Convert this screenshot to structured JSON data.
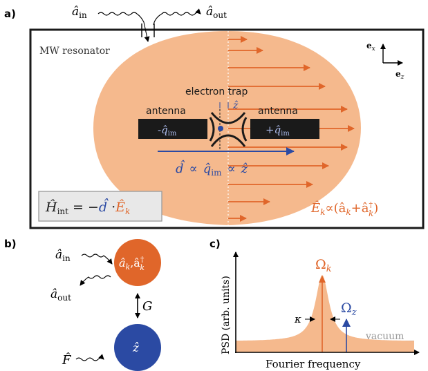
{
  "panel_a": {
    "label": "a)",
    "a_in": "â",
    "a_in_sub": "in",
    "a_out": "â",
    "a_out_sub": "out",
    "resonator_label": "MW resonator",
    "axis_x": "e",
    "axis_x_sub": "x",
    "axis_z": "e",
    "axis_z_sub": "z",
    "electron_trap": "electron trap",
    "z_hat_small": "ẑ",
    "antenna_left": "antenna",
    "antenna_right": "antenna",
    "q_left": "-q̂",
    "q_left_sub": "im",
    "q_right": "+q̂",
    "q_right_sub": "im",
    "dipole_d": "d̂",
    "dipole_mid": "∝",
    "dipole_q": "q̂",
    "dipole_q_sub": "im",
    "dipole_mid2": "∝",
    "dipole_z": "ẑ",
    "hamiltonian_H": "Ĥ",
    "hamiltonian_H_sub": "int",
    "hamiltonian_eq": " = −",
    "hamiltonian_d": "d̂",
    "hamiltonian_dot": " ·",
    "hamiltonian_E": "Ê",
    "hamiltonian_E_sub": "k",
    "field_E": "Ê",
    "field_E_sub": "k",
    "field_prop": "∝(â",
    "field_k": "k",
    "field_plus": "+â",
    "field_dag": "†",
    "field_k2": "k",
    "field_close": ")",
    "colors": {
      "field": "#f5b98d",
      "arrow": "#e0662a",
      "blue": "#2b4aa3",
      "antenna": "#1a1a1a",
      "box": "#e8e8e8"
    }
  },
  "panel_b": {
    "label": "b)",
    "a_in": "â",
    "a_in_sub": "in",
    "a_out": "â",
    "a_out_sub": "out",
    "mode": "â",
    "mode_sub": "k",
    "mode_comma": ",â",
    "mode_dag": "†",
    "mode_sub2": "k",
    "coupling": "G",
    "z_node": "ẑ",
    "force": "F̂",
    "colors": {
      "mode": "#e0662a",
      "mech": "#2b4aa3"
    }
  },
  "panel_c": {
    "label": "c)",
    "ylabel": "PSD (arb. units)",
    "xlabel": "Fourier frequency",
    "omega_k": "Ω",
    "omega_k_sub": "k",
    "omega_z": "Ω",
    "omega_z_sub": "z",
    "kappa": "κ",
    "vacuum": "vacuum",
    "colors": {
      "psd": "#f5b98d",
      "peak": "#e0662a",
      "z_peak": "#2b4aa3",
      "vacuum": "#999999"
    }
  }
}
